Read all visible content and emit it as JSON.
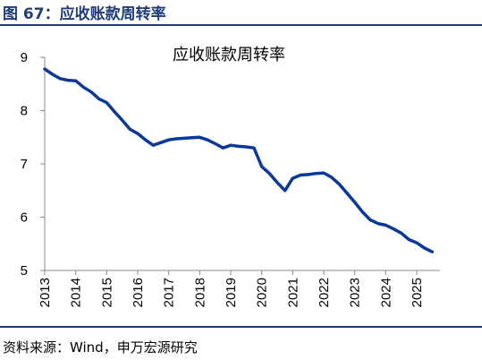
{
  "figure": {
    "title": "图 67：应收账款周转率",
    "source": "资料来源：Wind，申万宏源研究"
  },
  "colors": {
    "accent": "#1f3d7a",
    "series": "#0b3a96",
    "axis": "#888888"
  },
  "chart_data": {
    "type": "line",
    "title": "应收账款周转率",
    "xlabel": "",
    "ylabel": "",
    "xlim": [
      2013.0,
      2025.75
    ],
    "ylim": [
      5,
      9
    ],
    "x_ticks": [
      2013,
      2014,
      2015,
      2016,
      2017,
      2018,
      2019,
      2020,
      2021,
      2022,
      2023,
      2024,
      2025
    ],
    "x_tick_labels": [
      "2013",
      "2014",
      "2015",
      "2016",
      "2017",
      "2018",
      "2019",
      "2020",
      "2021",
      "2022",
      "2023",
      "2024",
      "2025"
    ],
    "y_ticks": [
      5,
      6,
      7,
      8,
      9
    ],
    "y_tick_labels": [
      "5",
      "6",
      "7",
      "8",
      "9"
    ],
    "grid": false,
    "legend": "none",
    "series": [
      {
        "x": [
          2013.0,
          2013.25,
          2013.5,
          2013.75,
          2014.0,
          2014.25,
          2014.5,
          2014.75,
          2015.0,
          2015.25,
          2015.5,
          2015.75,
          2016.0,
          2016.25,
          2016.5,
          2016.75,
          2017.0,
          2017.25,
          2017.5,
          2017.75,
          2018.0,
          2018.25,
          2018.5,
          2018.75,
          2019.0,
          2019.25,
          2019.5,
          2019.75,
          2020.0,
          2020.25,
          2020.5,
          2020.75,
          2021.0,
          2021.25,
          2021.5,
          2021.75,
          2022.0,
          2022.25,
          2022.5,
          2022.75,
          2023.0,
          2023.25,
          2023.5,
          2023.75,
          2024.0,
          2024.25,
          2024.5,
          2024.75,
          2025.0,
          2025.25,
          2025.5
        ],
        "values": [
          8.78,
          8.68,
          8.6,
          8.57,
          8.56,
          8.44,
          8.35,
          8.22,
          8.15,
          7.98,
          7.82,
          7.65,
          7.57,
          7.45,
          7.35,
          7.4,
          7.45,
          7.47,
          7.48,
          7.49,
          7.5,
          7.45,
          7.38,
          7.3,
          7.35,
          7.33,
          7.32,
          7.3,
          6.95,
          6.82,
          6.65,
          6.5,
          6.73,
          6.79,
          6.8,
          6.82,
          6.83,
          6.75,
          6.62,
          6.45,
          6.28,
          6.1,
          5.95,
          5.88,
          5.85,
          5.78,
          5.7,
          5.58,
          5.52,
          5.42,
          5.35
        ]
      }
    ]
  }
}
